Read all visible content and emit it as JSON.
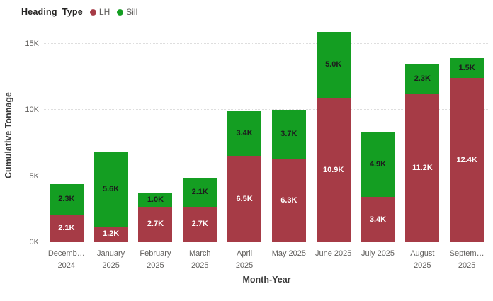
{
  "legend": {
    "title": "Heading_Type",
    "items": [
      {
        "label": "LH",
        "color": "#A63B46"
      },
      {
        "label": "Sill",
        "color": "#149E22"
      }
    ]
  },
  "chart_data": {
    "type": "bar",
    "stacked": true,
    "title": "",
    "xlabel": "Month-Year",
    "ylabel": "Cumulative Tonnage",
    "categories": [
      [
        "Decemb…",
        "2024"
      ],
      [
        "January",
        "2025"
      ],
      [
        "February",
        "2025"
      ],
      [
        "March",
        "2025"
      ],
      [
        "April",
        "2025"
      ],
      [
        "May 2025"
      ],
      [
        "June 2025"
      ],
      [
        "July 2025"
      ],
      [
        "August",
        "2025"
      ],
      [
        "Septem…",
        "2025"
      ]
    ],
    "series": [
      {
        "name": "LH",
        "color": "#A63B46",
        "label_color": "#FFFFFF",
        "values": [
          2.1,
          1.2,
          2.7,
          2.7,
          6.5,
          6.3,
          10.9,
          3.4,
          11.2,
          12.4
        ],
        "labels": [
          "2.1K",
          "1.2K",
          "2.7K",
          "2.7K",
          "6.5K",
          "6.3K",
          "10.9K",
          "3.4K",
          "11.2K",
          "12.4K"
        ]
      },
      {
        "name": "Sill",
        "color": "#149E22",
        "label_color": "#1D1D1D",
        "values": [
          2.3,
          5.6,
          1.0,
          2.1,
          3.4,
          3.7,
          5.0,
          4.9,
          2.3,
          1.5
        ],
        "labels": [
          "2.3K",
          "5.6K",
          "1.0K",
          "2.1K",
          "3.4K",
          "3.7K",
          "5.0K",
          "4.9K",
          "2.3K",
          "1.5K"
        ]
      }
    ],
    "y_ticks": [
      {
        "label": "0K",
        "value": 0
      },
      {
        "label": "5K",
        "value": 5
      },
      {
        "label": "10K",
        "value": 10
      },
      {
        "label": "15K",
        "value": 15
      }
    ],
    "ylim": [
      0,
      16.15
    ],
    "grid": "horizontal-dotted",
    "legend_position": "top-left"
  }
}
